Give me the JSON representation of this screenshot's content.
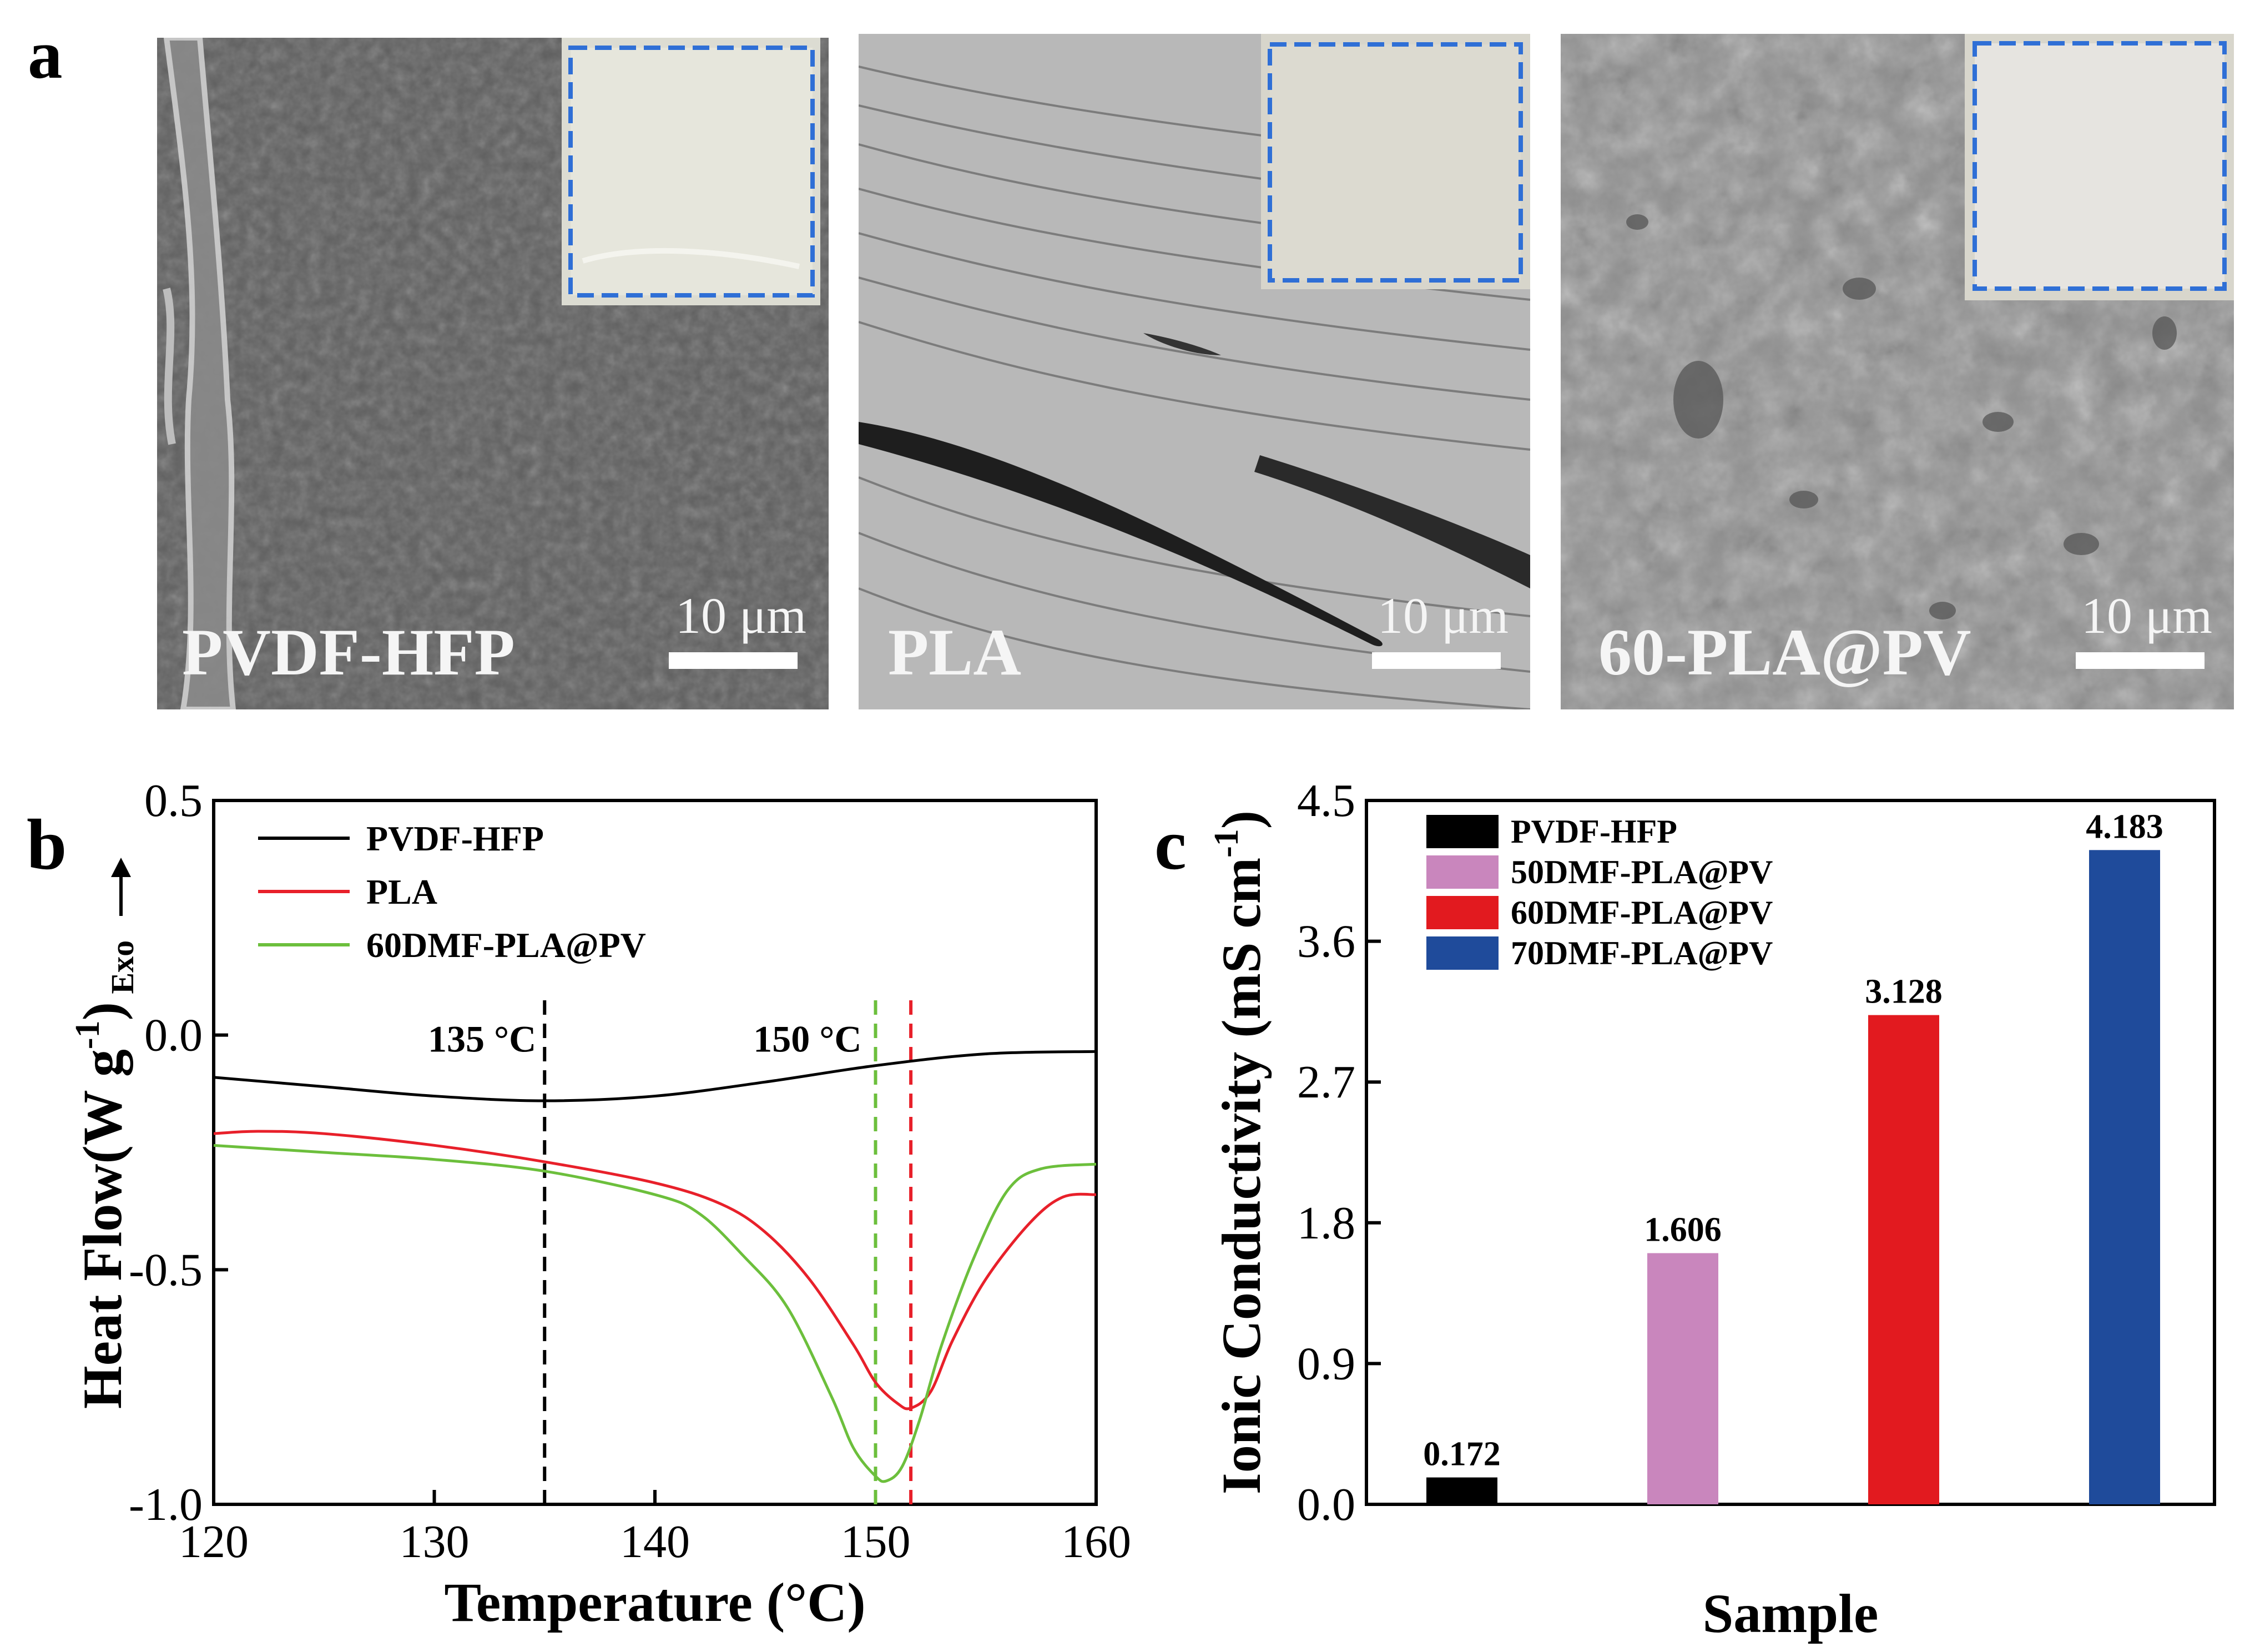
{
  "panel_a": {
    "letter": "a",
    "images": [
      {
        "sample": "PVDF-HFP",
        "scale_bar": "10 μm"
      },
      {
        "sample": "PLA",
        "scale_bar": "10 μm"
      },
      {
        "sample": "60-PLA@PV",
        "scale_bar": "10 μm"
      }
    ]
  },
  "colors": {
    "black": "#000000",
    "red": "#e8202a",
    "green": "#6cbf3c",
    "pink": "#c986bd",
    "bar_red": "#e21a1f",
    "blue": "#1f4b9b",
    "inset_dash": "#2f6fd6"
  },
  "chart_data": [
    {
      "panel": "b",
      "type": "line",
      "title": "",
      "xlabel": "Temperature (°C)",
      "ylabel": "Heat Flow(W g",
      "ylabel_sup": "-1",
      "ylabel_tail": ")",
      "ylabel_sub": "Exo",
      "xlim": [
        120,
        160
      ],
      "ylim": [
        -1.0,
        0.5
      ],
      "xticks": [
        "120",
        "130",
        "140",
        "150",
        "160"
      ],
      "yticks": [
        "-1.0",
        "-0.5",
        "0.0",
        "0.5"
      ],
      "legend_position": "top-left",
      "series": [
        {
          "name": "PVDF-HFP",
          "color": "#000000",
          "x": [
            120,
            125,
            130,
            135,
            140,
            145,
            150,
            155,
            160
          ],
          "y": [
            -0.09,
            -0.11,
            -0.13,
            -0.14,
            -0.13,
            -0.1,
            -0.065,
            -0.04,
            -0.035
          ]
        },
        {
          "name": "PLA",
          "color": "#e8202a",
          "x": [
            120,
            122,
            125,
            130,
            135,
            140,
            143,
            145,
            147,
            149,
            150,
            151,
            151.6,
            152.5,
            153.5,
            155,
            157,
            158.5,
            160
          ],
          "y": [
            -0.21,
            -0.205,
            -0.21,
            -0.235,
            -0.27,
            -0.315,
            -0.36,
            -0.42,
            -0.52,
            -0.66,
            -0.74,
            -0.785,
            -0.795,
            -0.76,
            -0.65,
            -0.52,
            -0.4,
            -0.345,
            -0.34
          ]
        },
        {
          "name": "60DMF-PLA@PV",
          "color": "#6cbf3c",
          "x": [
            120,
            125,
            130,
            135,
            140,
            142,
            144,
            146,
            148,
            149,
            150,
            150.5,
            151.2,
            152,
            153,
            154.5,
            156,
            157.5,
            160
          ],
          "y": [
            -0.235,
            -0.25,
            -0.265,
            -0.29,
            -0.34,
            -0.38,
            -0.47,
            -0.58,
            -0.77,
            -0.88,
            -0.94,
            -0.95,
            -0.92,
            -0.82,
            -0.66,
            -0.47,
            -0.33,
            -0.285,
            -0.275
          ]
        }
      ],
      "vlines": [
        {
          "x": 135,
          "label": "135 °C",
          "color": "#000000"
        },
        {
          "x": 150,
          "label": "150 °C",
          "color": "#6cbf3c"
        },
        {
          "x": 151.6,
          "label": "",
          "color": "#e8202a"
        }
      ]
    },
    {
      "panel": "c",
      "type": "bar",
      "title": "",
      "xlabel": "Sample",
      "ylabel": "Ionic Conductivity (mS cm",
      "ylabel_sup": "-1",
      "ylabel_tail": ")",
      "ylim": [
        0.0,
        4.5
      ],
      "yticks": [
        "0.0",
        "0.9",
        "1.8",
        "2.7",
        "3.6",
        "4.5"
      ],
      "categories": [
        "PVDF-HFP",
        "50DMF-PLA@PV",
        "60DMF-PLA@PV",
        "70DMF-PLA@PV"
      ],
      "values": [
        0.172,
        1.606,
        3.128,
        4.183
      ],
      "labels": [
        "0.172",
        "1.606",
        "3.128",
        "4.183"
      ],
      "colors": [
        "#000000",
        "#c986bd",
        "#e21a1f",
        "#1f4b9b"
      ],
      "legend_position": "top-left"
    }
  ],
  "panel_b": {
    "letter": "b"
  },
  "panel_c": {
    "letter": "c"
  }
}
